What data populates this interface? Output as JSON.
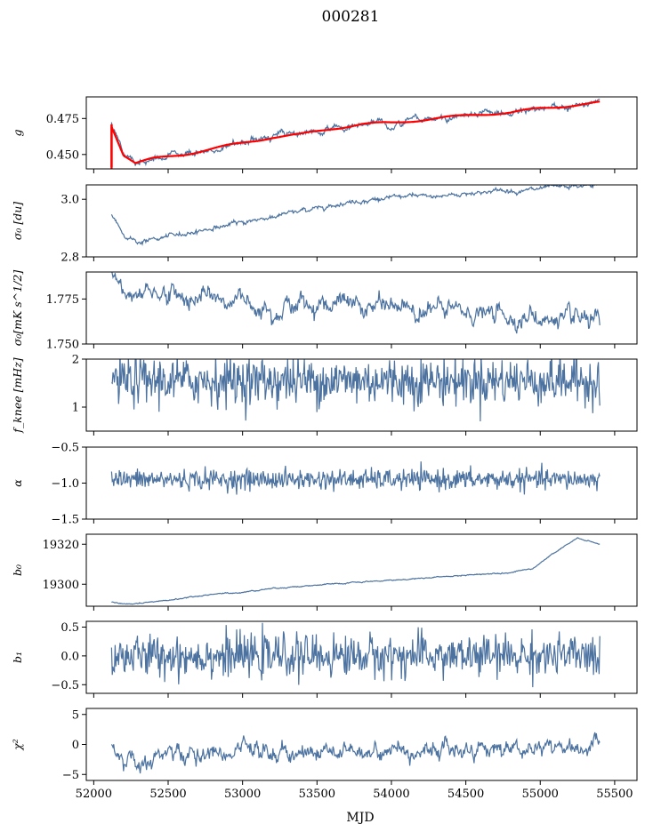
{
  "figure": {
    "title": "000281",
    "xlabel": "MJD"
  },
  "colors": {
    "line": "#4c72a0",
    "fit": "#ff0000",
    "axis": "#000000"
  },
  "chart_data": [
    {
      "type": "line",
      "key": "g",
      "ylabel": "g",
      "ylim": [
        0.44,
        0.49
      ],
      "yticks": [
        0.45,
        0.475
      ],
      "ytick_labels": [
        "0.450",
        "0.475"
      ],
      "model": {
        "start": 0.47,
        "min": 0.444,
        "min_x": 52280,
        "end": 0.485,
        "noise": 0.0012
      },
      "series": [
        {
          "values_anchor_x": [
            52120,
            52200,
            52280,
            52400,
            52600,
            52800,
            53000,
            53200,
            53400,
            53600,
            53800,
            54000,
            54200,
            54400,
            54600,
            54800,
            55000,
            55200,
            55400
          ],
          "values_anchor_y": [
            0.47,
            0.45,
            0.444,
            0.447,
            0.45,
            0.454,
            0.458,
            0.462,
            0.464,
            0.468,
            0.471,
            0.472,
            0.474,
            0.476,
            0.478,
            0.479,
            0.482,
            0.484,
            0.486
          ]
        }
      ],
      "has_fit_line": true
    },
    {
      "type": "line",
      "key": "sigma0",
      "ylabel": "σ₀ [du]",
      "ylim": [
        2.8,
        3.05
      ],
      "yticks": [
        2.8,
        3.0
      ],
      "ytick_labels": [
        "2.8",
        "3.0"
      ],
      "series": [
        {
          "values_anchor_x": [
            52120,
            52200,
            52300,
            52500,
            52700,
            52900,
            53100,
            53300,
            53500,
            53700,
            53900,
            54100,
            54300,
            54500,
            54700,
            54900,
            55100,
            55300,
            55400
          ],
          "values_anchor_y": [
            2.95,
            2.88,
            2.85,
            2.87,
            2.89,
            2.91,
            2.93,
            2.95,
            2.97,
            2.99,
            3.0,
            3.01,
            3.01,
            3.02,
            3.03,
            3.03,
            3.04,
            3.045,
            3.05
          ]
        }
      ],
      "noise": 0.004
    },
    {
      "type": "line",
      "key": "sigma0_mks",
      "ylabel": "σ₀[mK s^1/2]",
      "ylim": [
        1.75,
        1.79
      ],
      "yticks": [
        1.75,
        1.775
      ],
      "ytick_labels": [
        "1.750",
        "1.775"
      ],
      "series": [
        {
          "values_anchor_x": [
            52120,
            52200,
            52400,
            52600,
            52800,
            53000,
            53200,
            53400,
            53600,
            53800,
            54000,
            54200,
            54400,
            54600,
            54800,
            55000,
            55200,
            55400
          ],
          "values_anchor_y": [
            1.79,
            1.778,
            1.78,
            1.776,
            1.775,
            1.774,
            1.771,
            1.772,
            1.773,
            1.77,
            1.771,
            1.77,
            1.768,
            1.767,
            1.765,
            1.764,
            1.762,
            1.76
          ]
        }
      ],
      "noise": 0.0028
    },
    {
      "type": "line",
      "key": "fknee",
      "ylabel": "f_knee [mHz]",
      "ylim": [
        0.5,
        2.0
      ],
      "yticks": [
        1,
        2
      ],
      "ytick_labels": [
        "1",
        "2"
      ],
      "series": [
        {
          "mean": 1.55,
          "noise": 0.25
        }
      ]
    },
    {
      "type": "line",
      "key": "alpha",
      "ylabel": "α",
      "ylim": [
        -1.5,
        -0.5
      ],
      "yticks": [
        -1.5,
        -1.0,
        -0.5
      ],
      "ytick_labels": [
        "−1.5",
        "−1.0",
        "−0.5"
      ],
      "series": [
        {
          "mean": -0.95,
          "noise": 0.07
        }
      ]
    },
    {
      "type": "line",
      "key": "b0",
      "ylabel": "b₀",
      "ylim": [
        19289,
        19325
      ],
      "yticks": [
        19300,
        19320
      ],
      "ytick_labels": [
        "19300",
        "19320"
      ],
      "series": [
        {
          "values_anchor_x": [
            52120,
            52250,
            52400,
            52600,
            52800,
            53000,
            53200,
            53400,
            53600,
            53800,
            54000,
            54200,
            54400,
            54600,
            54800,
            54950,
            55100,
            55250,
            55400
          ],
          "values_anchor_y": [
            19291,
            19290,
            19291,
            19293,
            19295,
            19296,
            19298,
            19299,
            19300,
            19301,
            19302,
            19303,
            19304,
            19305,
            19306,
            19308,
            19316,
            19323,
            19320
          ]
        }
      ],
      "noise": 0.15
    },
    {
      "type": "line",
      "key": "b1",
      "ylabel": "b₁",
      "ylim": [
        -0.65,
        0.6
      ],
      "yticks": [
        -0.5,
        0.0,
        0.5
      ],
      "ytick_labels": [
        "−0.5",
        "0.0",
        "0.5"
      ],
      "series": [
        {
          "mean": 0.0,
          "noise": 0.18
        }
      ]
    },
    {
      "type": "line",
      "key": "chi2",
      "ylabel": "χ²",
      "ylim": [
        -6,
        6
      ],
      "yticks": [
        -5,
        0,
        5
      ],
      "ytick_labels": [
        "−5",
        "0",
        "5"
      ],
      "series": [
        {
          "values_anchor_x": [
            52120,
            52300,
            52600,
            53000,
            53400,
            53800,
            54200,
            54600,
            55000,
            55400
          ],
          "values_anchor_y": [
            -1.5,
            -2.2,
            -1.8,
            -1.5,
            -1.3,
            -1.0,
            -0.8,
            -0.6,
            -0.5,
            -0.4
          ]
        }
      ],
      "noise": 0.8
    }
  ],
  "xaxis": {
    "xlim": [
      51950,
      55650
    ],
    "xticks": [
      52000,
      52500,
      53000,
      53500,
      54000,
      54500,
      55000,
      55500
    ],
    "xtick_labels": [
      "52000",
      "52500",
      "53000",
      "53500",
      "54000",
      "54500",
      "55000",
      "55500"
    ],
    "data_start": 52120,
    "data_end": 55400
  }
}
